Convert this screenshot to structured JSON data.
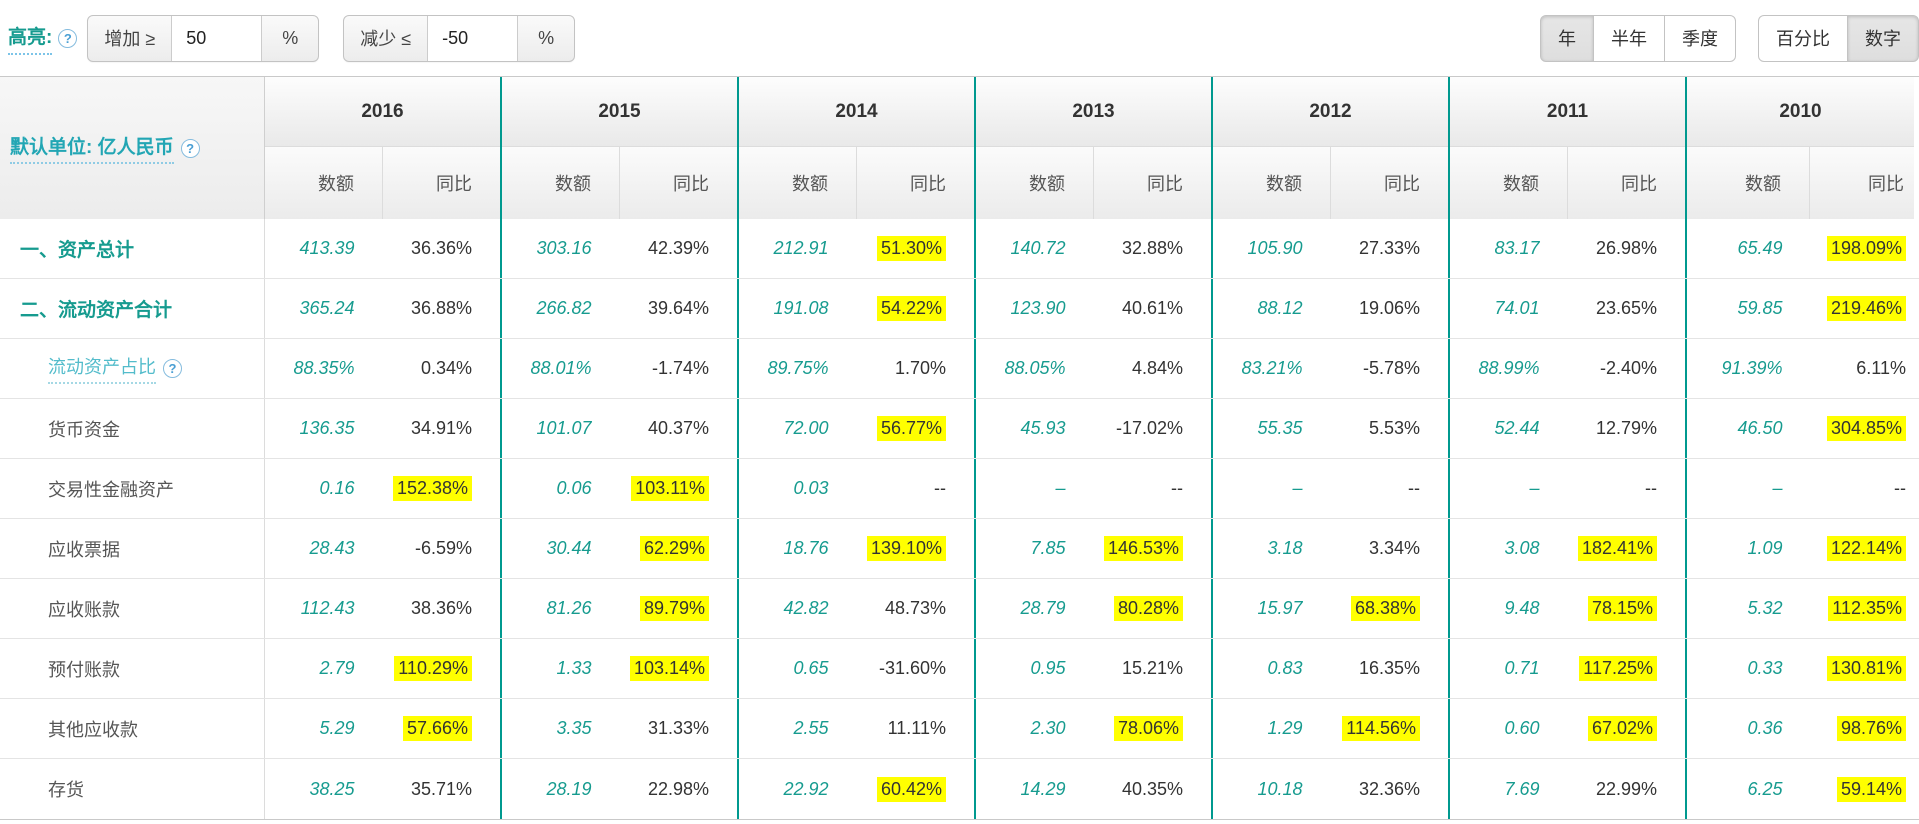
{
  "toolbar": {
    "highlight_label": "高亮:",
    "increase_label": "增加 ≥",
    "increase_value": "50",
    "decrease_label": "减少 ≤",
    "decrease_value": "-50",
    "percent_suffix": "%",
    "period_buttons": [
      {
        "label": "年",
        "active": true
      },
      {
        "label": "半年",
        "active": false
      },
      {
        "label": "季度",
        "active": false
      }
    ],
    "format_buttons": [
      {
        "label": "百分比",
        "active": false
      },
      {
        "label": "数字",
        "active": true
      }
    ],
    "help_icon_glyph": "?"
  },
  "table": {
    "unit_label": "默认单位: 亿人民币",
    "years": [
      "2016",
      "2015",
      "2014",
      "2013",
      "2012",
      "2011",
      "2010"
    ],
    "subheaders": {
      "amount": "数额",
      "yoy": "同比"
    },
    "rows": [
      {
        "label": "一、资产总计",
        "type": "section",
        "cells": [
          {
            "a": "413.39",
            "y": "36.36%",
            "hl": false
          },
          {
            "a": "303.16",
            "y": "42.39%",
            "hl": false
          },
          {
            "a": "212.91",
            "y": "51.30%",
            "hl": true
          },
          {
            "a": "140.72",
            "y": "32.88%",
            "hl": false
          },
          {
            "a": "105.90",
            "y": "27.33%",
            "hl": false
          },
          {
            "a": "83.17",
            "y": "26.98%",
            "hl": false
          },
          {
            "a": "65.49",
            "y": "198.09%",
            "hl": true
          }
        ]
      },
      {
        "label": "二、流动资产合计",
        "type": "section",
        "cells": [
          {
            "a": "365.24",
            "y": "36.88%",
            "hl": false
          },
          {
            "a": "266.82",
            "y": "39.64%",
            "hl": false
          },
          {
            "a": "191.08",
            "y": "54.22%",
            "hl": true
          },
          {
            "a": "123.90",
            "y": "40.61%",
            "hl": false
          },
          {
            "a": "88.12",
            "y": "19.06%",
            "hl": false
          },
          {
            "a": "74.01",
            "y": "23.65%",
            "hl": false
          },
          {
            "a": "59.85",
            "y": "219.46%",
            "hl": true
          }
        ]
      },
      {
        "label": "流动资产占比",
        "type": "ratio",
        "has_help": true,
        "cells": [
          {
            "a": "88.35%",
            "y": "0.34%",
            "hl": false
          },
          {
            "a": "88.01%",
            "y": "-1.74%",
            "hl": false
          },
          {
            "a": "89.75%",
            "y": "1.70%",
            "hl": false
          },
          {
            "a": "88.05%",
            "y": "4.84%",
            "hl": false
          },
          {
            "a": "83.21%",
            "y": "-5.78%",
            "hl": false
          },
          {
            "a": "88.99%",
            "y": "-2.40%",
            "hl": false
          },
          {
            "a": "91.39%",
            "y": "6.11%",
            "hl": false
          }
        ]
      },
      {
        "label": "货币资金",
        "type": "item",
        "cells": [
          {
            "a": "136.35",
            "y": "34.91%",
            "hl": false
          },
          {
            "a": "101.07",
            "y": "40.37%",
            "hl": false
          },
          {
            "a": "72.00",
            "y": "56.77%",
            "hl": true
          },
          {
            "a": "45.93",
            "y": "-17.02%",
            "hl": false
          },
          {
            "a": "55.35",
            "y": "5.53%",
            "hl": false
          },
          {
            "a": "52.44",
            "y": "12.79%",
            "hl": false
          },
          {
            "a": "46.50",
            "y": "304.85%",
            "hl": true
          }
        ]
      },
      {
        "label": "交易性金融资产",
        "type": "item",
        "cells": [
          {
            "a": "0.16",
            "y": "152.38%",
            "hl": true
          },
          {
            "a": "0.06",
            "y": "103.11%",
            "hl": true
          },
          {
            "a": "0.03",
            "y": "--",
            "hl": false
          },
          {
            "a": "–",
            "y": "--",
            "hl": false
          },
          {
            "a": "–",
            "y": "--",
            "hl": false
          },
          {
            "a": "–",
            "y": "--",
            "hl": false
          },
          {
            "a": "–",
            "y": "--",
            "hl": false
          }
        ]
      },
      {
        "label": "应收票据",
        "type": "item",
        "cells": [
          {
            "a": "28.43",
            "y": "-6.59%",
            "hl": false
          },
          {
            "a": "30.44",
            "y": "62.29%",
            "hl": true
          },
          {
            "a": "18.76",
            "y": "139.10%",
            "hl": true
          },
          {
            "a": "7.85",
            "y": "146.53%",
            "hl": true
          },
          {
            "a": "3.18",
            "y": "3.34%",
            "hl": false
          },
          {
            "a": "3.08",
            "y": "182.41%",
            "hl": true
          },
          {
            "a": "1.09",
            "y": "122.14%",
            "hl": true
          }
        ]
      },
      {
        "label": "应收账款",
        "type": "item",
        "cells": [
          {
            "a": "112.43",
            "y": "38.36%",
            "hl": false
          },
          {
            "a": "81.26",
            "y": "89.79%",
            "hl": true
          },
          {
            "a": "42.82",
            "y": "48.73%",
            "hl": false
          },
          {
            "a": "28.79",
            "y": "80.28%",
            "hl": true
          },
          {
            "a": "15.97",
            "y": "68.38%",
            "hl": true
          },
          {
            "a": "9.48",
            "y": "78.15%",
            "hl": true
          },
          {
            "a": "5.32",
            "y": "112.35%",
            "hl": true
          }
        ]
      },
      {
        "label": "预付账款",
        "type": "item",
        "cells": [
          {
            "a": "2.79",
            "y": "110.29%",
            "hl": true
          },
          {
            "a": "1.33",
            "y": "103.14%",
            "hl": true
          },
          {
            "a": "0.65",
            "y": "-31.60%",
            "hl": false
          },
          {
            "a": "0.95",
            "y": "15.21%",
            "hl": false
          },
          {
            "a": "0.83",
            "y": "16.35%",
            "hl": false
          },
          {
            "a": "0.71",
            "y": "117.25%",
            "hl": true
          },
          {
            "a": "0.33",
            "y": "130.81%",
            "hl": true
          }
        ]
      },
      {
        "label": "其他应收款",
        "type": "item",
        "cells": [
          {
            "a": "5.29",
            "y": "57.66%",
            "hl": true
          },
          {
            "a": "3.35",
            "y": "31.33%",
            "hl": false
          },
          {
            "a": "2.55",
            "y": "11.11%",
            "hl": false
          },
          {
            "a": "2.30",
            "y": "78.06%",
            "hl": true
          },
          {
            "a": "1.29",
            "y": "114.56%",
            "hl": true
          },
          {
            "a": "0.60",
            "y": "67.02%",
            "hl": true
          },
          {
            "a": "0.36",
            "y": "98.76%",
            "hl": true
          }
        ]
      },
      {
        "label": "存货",
        "type": "item",
        "cells": [
          {
            "a": "38.25",
            "y": "35.71%",
            "hl": false
          },
          {
            "a": "28.19",
            "y": "22.98%",
            "hl": false
          },
          {
            "a": "22.92",
            "y": "60.42%",
            "hl": true
          },
          {
            "a": "14.29",
            "y": "40.35%",
            "hl": false
          },
          {
            "a": "10.18",
            "y": "32.36%",
            "hl": false
          },
          {
            "a": "7.69",
            "y": "22.99%",
            "hl": false
          },
          {
            "a": "6.25",
            "y": "59.14%",
            "hl": true
          }
        ]
      }
    ]
  },
  "colors": {
    "accent_teal_text": "#169b8f",
    "ratio_label_teal": "#53bccb",
    "year_divider_teal": "#00998f",
    "highlight_yellow": "#ffff00",
    "yoy_text": "#333333",
    "label_text": "#555555"
  }
}
